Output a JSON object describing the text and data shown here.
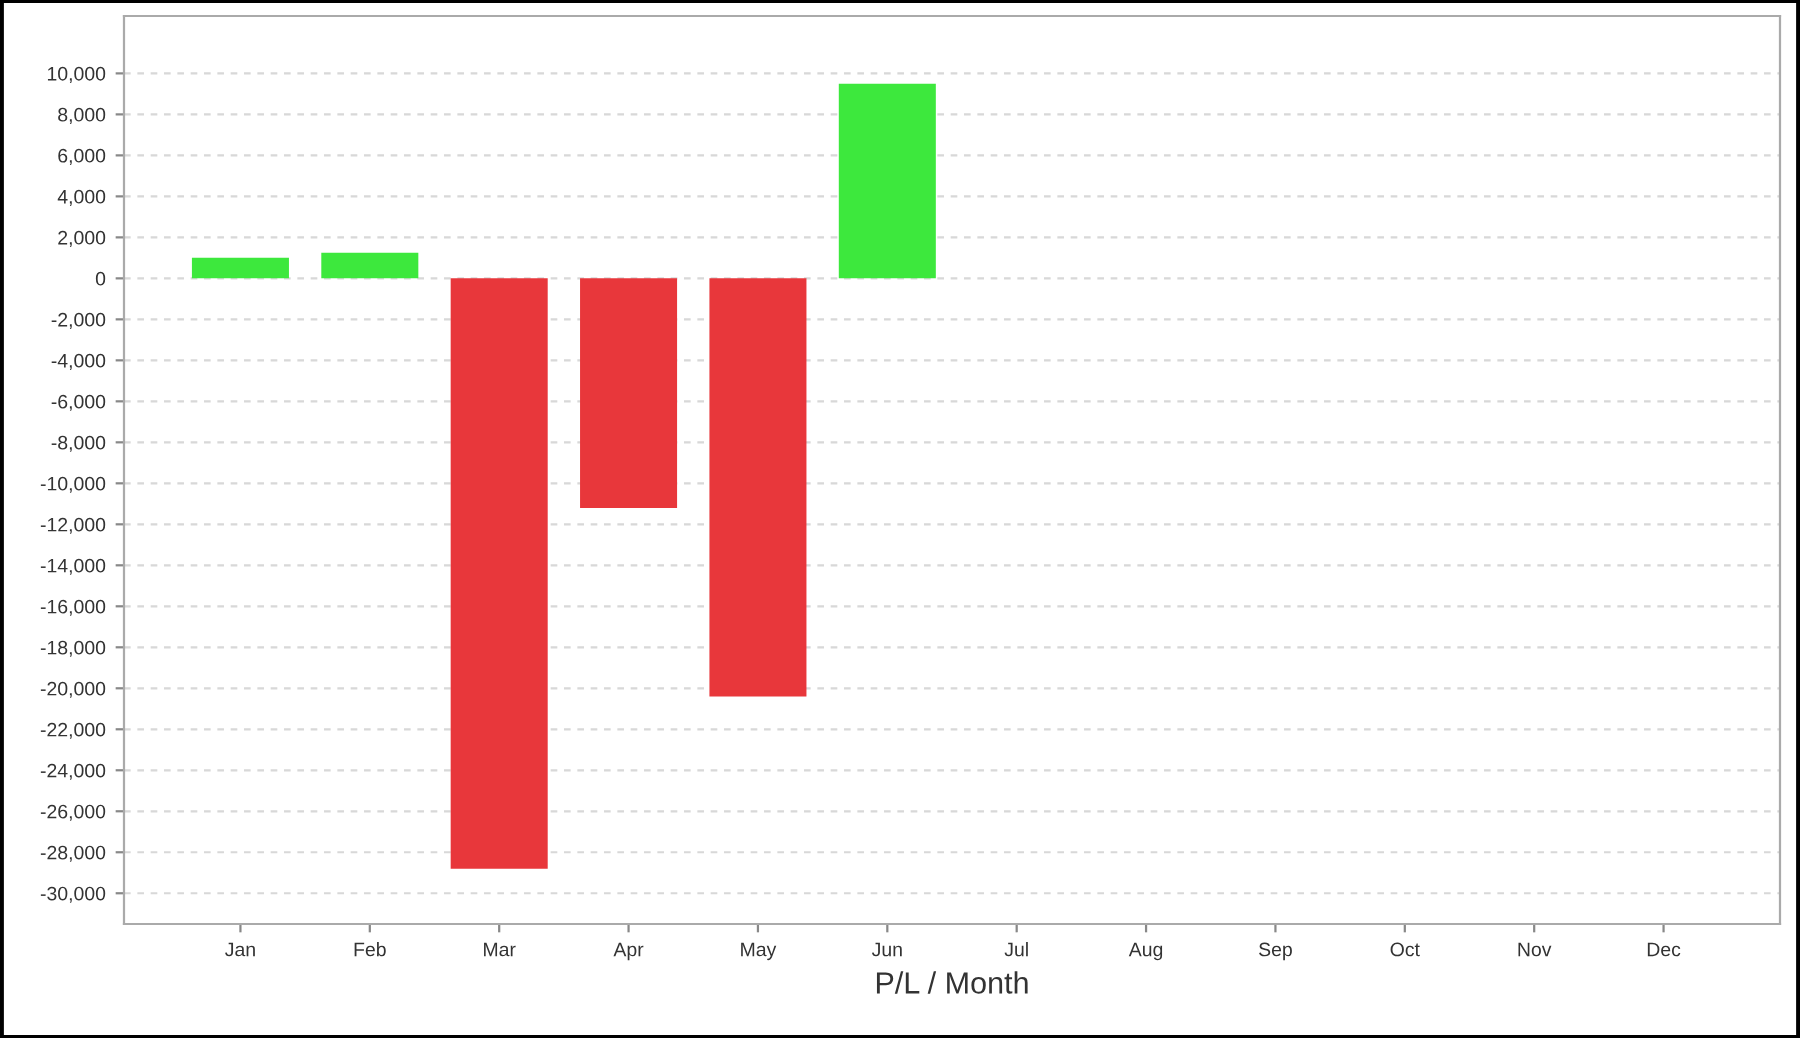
{
  "chart_data": {
    "type": "bar",
    "xlabel": "P/L / Month",
    "categories": [
      "Jan",
      "Feb",
      "Mar",
      "Apr",
      "May",
      "Jun",
      "Jul",
      "Aug",
      "Sep",
      "Oct",
      "Nov",
      "Dec"
    ],
    "values": [
      1000,
      1250,
      -28800,
      -11200,
      -20400,
      9500,
      null,
      null,
      null,
      null,
      null,
      null
    ],
    "colors": [
      "#3de83d",
      "#3de83d",
      "#e8373b",
      "#e8373b",
      "#e8373b",
      "#3de83d",
      null,
      null,
      null,
      null,
      null,
      null
    ],
    "ylim": [
      -31500,
      12800
    ],
    "yticks": [
      {
        "value": 10000,
        "label": "10,000"
      },
      {
        "value": 8000,
        "label": "8,000"
      },
      {
        "value": 6000,
        "label": "6,000"
      },
      {
        "value": 4000,
        "label": "4,000"
      },
      {
        "value": 2000,
        "label": "2,000"
      },
      0,
      {
        "value": -2000,
        "label": "-2,000"
      },
      {
        "value": -4000,
        "label": "-4,000"
      },
      {
        "value": -6000,
        "label": "-6,000"
      },
      {
        "value": -8000,
        "label": "-8,000"
      },
      {
        "value": -10000,
        "label": "-10,000"
      },
      {
        "value": -12000,
        "label": "-12,000"
      },
      {
        "value": -14000,
        "label": "-14,000"
      },
      {
        "value": -16000,
        "label": "-16,000"
      },
      {
        "value": -18000,
        "label": "-18,000"
      },
      {
        "value": -20000,
        "label": "-20,000"
      },
      {
        "value": -22000,
        "label": "-22,000"
      },
      {
        "value": -24000,
        "label": "-24,000"
      },
      {
        "value": -26000,
        "label": "-26,000"
      },
      {
        "value": -28000,
        "label": "-28,000"
      },
      {
        "value": -30000,
        "label": "-30,000"
      }
    ],
    "grid": "y"
  }
}
